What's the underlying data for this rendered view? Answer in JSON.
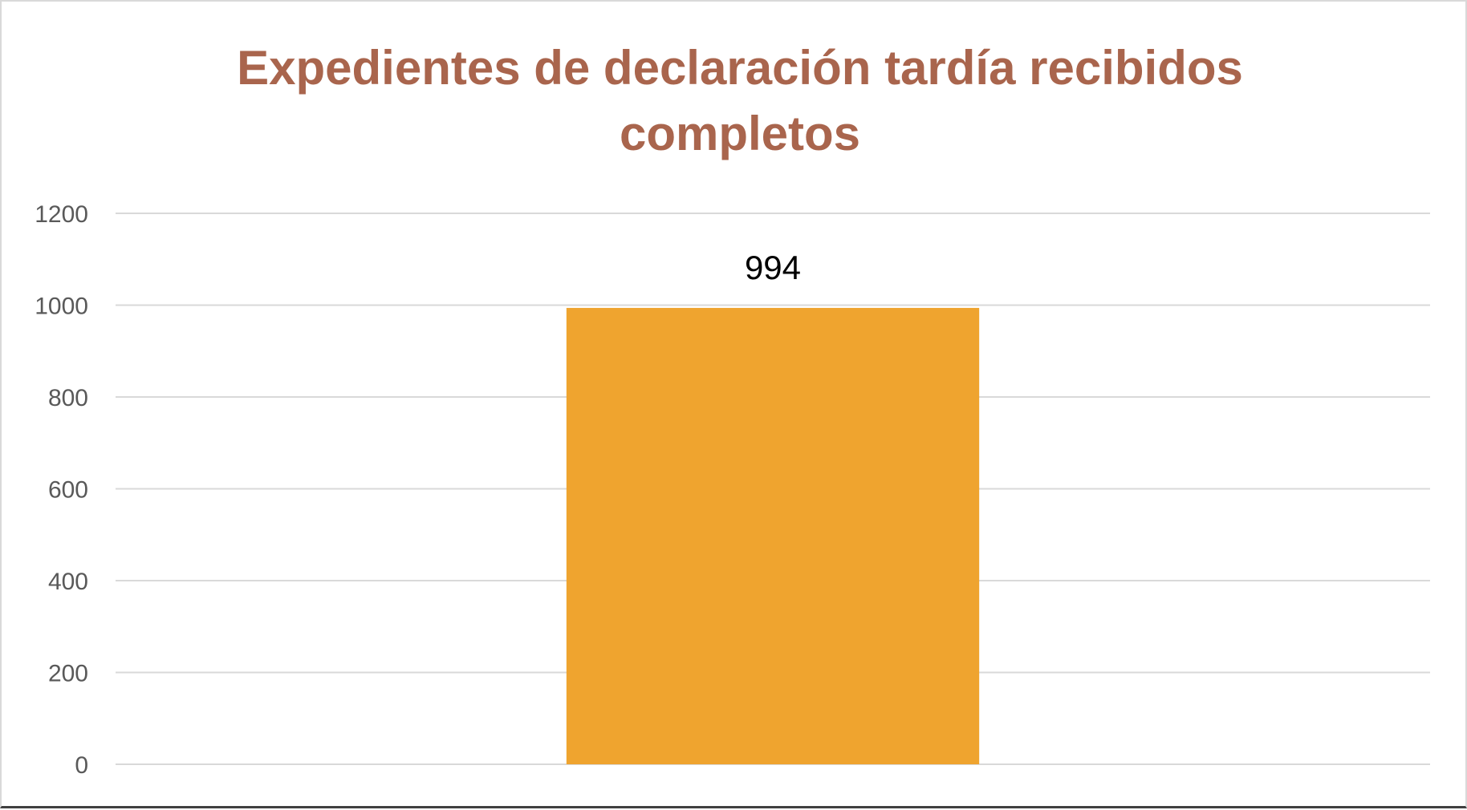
{
  "chart_data": {
    "type": "bar",
    "title": "Expedientes de declaración tardía recibidos completos",
    "categories": [
      ""
    ],
    "values": [
      994
    ],
    "data_labels": [
      "994"
    ],
    "ylim": [
      0,
      1200
    ],
    "yticks": [
      0,
      200,
      400,
      600,
      800,
      1000,
      1200
    ],
    "ytick_labels": [
      "0",
      "200",
      "400",
      "600",
      "800",
      "1000",
      "1200"
    ],
    "grid": true,
    "legend": "none",
    "colors": {
      "bar": "#EFA42F",
      "title": "#A9654D",
      "gridline": "#D9D9D9",
      "tick_text": "#595959"
    }
  }
}
